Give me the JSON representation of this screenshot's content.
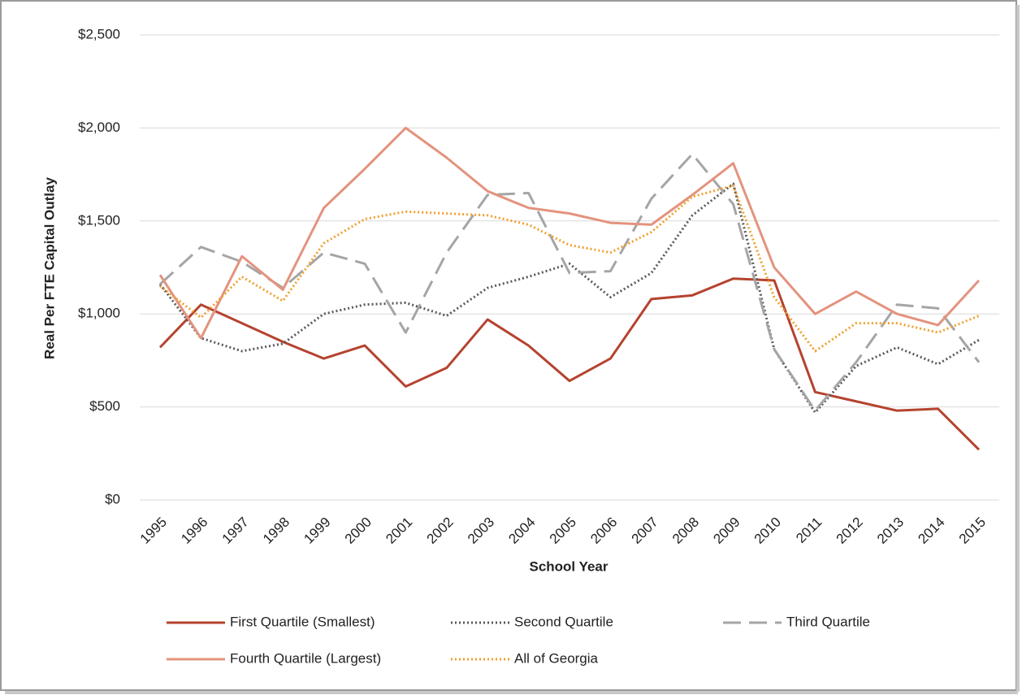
{
  "chart_data": {
    "type": "line",
    "x_label": "School Year",
    "y_label": "Real Per FTE Capital Outlay",
    "categories": [
      "1995",
      "1996",
      "1997",
      "1998",
      "1999",
      "2000",
      "2001",
      "2002",
      "2003",
      "2004",
      "2005",
      "2006",
      "2007",
      "2008",
      "2009",
      "2010",
      "2011",
      "2012",
      "2013",
      "2014",
      "2015"
    ],
    "ylim": [
      0,
      2500
    ],
    "yticks": [
      {
        "value": 0,
        "label": "$0"
      },
      {
        "value": 500,
        "label": "$500"
      },
      {
        "value": 1000,
        "label": "$1,000"
      },
      {
        "value": 1500,
        "label": "$1,500"
      },
      {
        "value": 2000,
        "label": "$2,000"
      },
      {
        "value": 2500,
        "label": "$2,500"
      }
    ],
    "grid": true,
    "legend": "bottom",
    "series": [
      {
        "name": "First Quartile (Smallest)",
        "color": "#b5432f",
        "dash": "solid",
        "values": [
          820,
          1050,
          950,
          850,
          760,
          830,
          610,
          710,
          970,
          830,
          640,
          760,
          1080,
          1100,
          1190,
          1180,
          580,
          530,
          480,
          490,
          270
        ]
      },
      {
        "name": "Second Quartile",
        "color": "#595959",
        "dash": "dotted",
        "values": [
          1160,
          870,
          800,
          840,
          1000,
          1050,
          1060,
          990,
          1140,
          1200,
          1270,
          1090,
          1220,
          1530,
          1700,
          810,
          470,
          720,
          820,
          730,
          860
        ]
      },
      {
        "name": "Third Quartile",
        "color": "#a5a5a5",
        "dash": "dashed",
        "values": [
          1160,
          1360,
          1280,
          1140,
          1330,
          1270,
          900,
          1330,
          1640,
          1650,
          1220,
          1230,
          1620,
          1860,
          1590,
          810,
          480,
          740,
          1050,
          1030,
          740
        ]
      },
      {
        "name": "Fourth Quartile (Largest)",
        "color": "#e3937e",
        "dash": "solid",
        "values": [
          1210,
          870,
          1310,
          1130,
          1570,
          1780,
          2000,
          1840,
          1660,
          1570,
          1540,
          1490,
          1480,
          1640,
          1810,
          1250,
          1000,
          1120,
          1000,
          940,
          1180
        ]
      },
      {
        "name": "All of Georgia",
        "color": "#f0a030",
        "dash": "dotted",
        "values": [
          1150,
          980,
          1200,
          1070,
          1380,
          1510,
          1550,
          1540,
          1530,
          1480,
          1370,
          1330,
          1440,
          1630,
          1690,
          1090,
          800,
          950,
          950,
          900,
          990
        ]
      }
    ]
  }
}
